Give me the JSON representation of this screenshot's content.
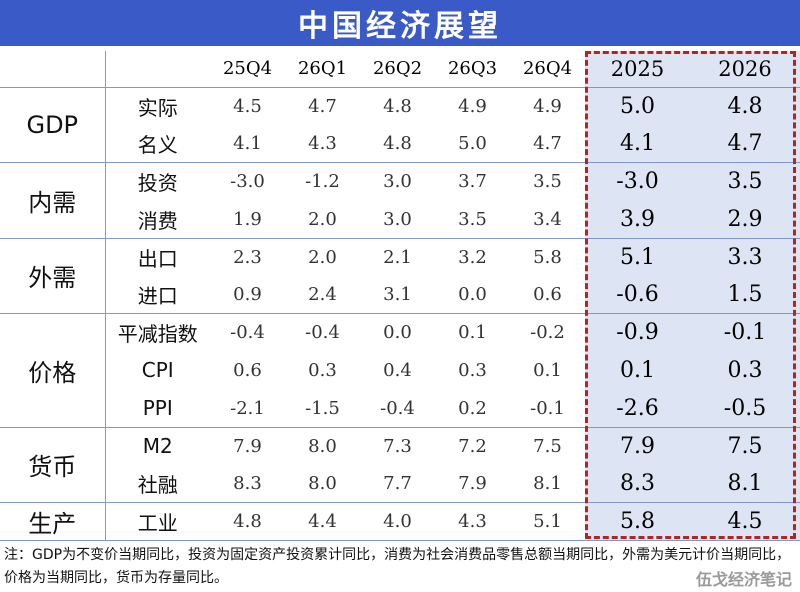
{
  "title": "中国经济展望",
  "columns": [
    "25Q4",
    "26Q1",
    "26Q2",
    "26Q3",
    "26Q4",
    "2025",
    "2026"
  ],
  "groups": [
    {
      "category": "GDP",
      "rows": [
        {
          "label": "实际",
          "values": [
            "4.5",
            "4.7",
            "4.8",
            "4.9",
            "4.9",
            "5.0",
            "4.8"
          ]
        },
        {
          "label": "名义",
          "values": [
            "4.1",
            "4.3",
            "4.8",
            "5.0",
            "4.7",
            "4.1",
            "4.7"
          ]
        }
      ]
    },
    {
      "category": "内需",
      "rows": [
        {
          "label": "投资",
          "values": [
            "-3.0",
            "-1.2",
            "3.0",
            "3.7",
            "3.5",
            "-3.0",
            "3.5"
          ]
        },
        {
          "label": "消费",
          "values": [
            "1.9",
            "2.0",
            "3.0",
            "3.5",
            "3.4",
            "3.9",
            "2.9"
          ]
        }
      ]
    },
    {
      "category": "外需",
      "rows": [
        {
          "label": "出口",
          "values": [
            "2.3",
            "2.0",
            "2.1",
            "3.2",
            "5.8",
            "5.1",
            "3.3"
          ]
        },
        {
          "label": "进口",
          "values": [
            "0.9",
            "2.4",
            "3.1",
            "0.0",
            "0.6",
            "-0.6",
            "1.5"
          ]
        }
      ]
    },
    {
      "category": "价格",
      "rows": [
        {
          "label": "平减指数",
          "values": [
            "-0.4",
            "-0.4",
            "0.0",
            "0.1",
            "-0.2",
            "-0.9",
            "-0.1"
          ]
        },
        {
          "label": "CPI",
          "values": [
            "0.6",
            "0.3",
            "0.4",
            "0.3",
            "0.1",
            "0.1",
            "0.3"
          ]
        },
        {
          "label": "PPI",
          "values": [
            "-2.1",
            "-1.5",
            "-0.4",
            "0.2",
            "-0.1",
            "-2.6",
            "-0.5"
          ]
        }
      ]
    },
    {
      "category": "货币",
      "rows": [
        {
          "label": "M2",
          "values": [
            "7.9",
            "8.0",
            "7.3",
            "7.2",
            "7.5",
            "7.9",
            "7.5"
          ]
        },
        {
          "label": "社融",
          "values": [
            "8.3",
            "8.0",
            "7.7",
            "7.9",
            "8.1",
            "8.3",
            "8.1"
          ]
        }
      ]
    },
    {
      "category": "生产",
      "rows": [
        {
          "label": "工业",
          "values": [
            "4.8",
            "4.4",
            "4.0",
            "4.3",
            "5.1",
            "5.8",
            "4.5"
          ]
        }
      ]
    }
  ],
  "note": "注：GDP为不变价当期同比，投资为固定资产投资累计同比，消费为社会消费品零售总额当期同比，外需为美元计价当期同比，价格为当期同比，货币为存量同比。",
  "watermark": "伍戈经济笔记",
  "colors": {
    "title_bar": "#3a5bc7",
    "highlight_fill": "#dde4f3",
    "dashed_border": "#b3261e",
    "divider": "#7f97d4"
  }
}
